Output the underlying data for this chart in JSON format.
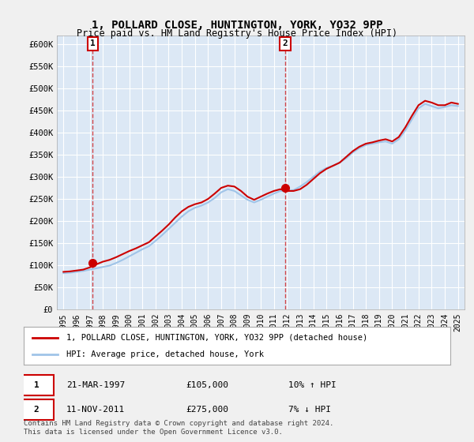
{
  "title1": "1, POLLARD CLOSE, HUNTINGTON, YORK, YO32 9PP",
  "title2": "Price paid vs. HM Land Registry's House Price Index (HPI)",
  "legend_line1": "1, POLLARD CLOSE, HUNTINGTON, YORK, YO32 9PP (detached house)",
  "legend_line2": "HPI: Average price, detached house, York",
  "sale1_label": "1",
  "sale1_date": "21-MAR-1997",
  "sale1_price": "£105,000",
  "sale1_hpi": "10% ↑ HPI",
  "sale1_year": 1997.22,
  "sale1_value": 105000,
  "sale2_label": "2",
  "sale2_date": "11-NOV-2011",
  "sale2_price": "£275,000",
  "sale2_hpi": "7% ↓ HPI",
  "sale2_year": 2011.87,
  "sale2_value": 275000,
  "footer": "Contains HM Land Registry data © Crown copyright and database right 2024.\nThis data is licensed under the Open Government Licence v3.0.",
  "hpi_color": "#a0c4e8",
  "price_color": "#cc0000",
  "marker_color": "#cc0000",
  "vline_color": "#cc0000",
  "bg_color": "#e8f0f8",
  "plot_bg": "#dce8f5",
  "ylim": [
    0,
    620000
  ],
  "yticks": [
    0,
    50000,
    100000,
    150000,
    200000,
    250000,
    300000,
    350000,
    400000,
    450000,
    500000,
    550000,
    600000
  ],
  "ytick_labels": [
    "£0",
    "£50K",
    "£100K",
    "£150K",
    "£200K",
    "£250K",
    "£300K",
    "£350K",
    "£400K",
    "£450K",
    "£500K",
    "£550K",
    "£600K"
  ],
  "xlim": [
    1994.5,
    2025.5
  ],
  "hpi_years": [
    1995,
    1995.5,
    1996,
    1996.5,
    1997,
    1997.5,
    1998,
    1998.5,
    1999,
    1999.5,
    2000,
    2000.5,
    2001,
    2001.5,
    2002,
    2002.5,
    2003,
    2003.5,
    2004,
    2004.5,
    2005,
    2005.5,
    2006,
    2006.5,
    2007,
    2007.5,
    2008,
    2008.5,
    2009,
    2009.5,
    2010,
    2010.5,
    2011,
    2011.5,
    2012,
    2012.5,
    2013,
    2013.5,
    2014,
    2014.5,
    2015,
    2015.5,
    2016,
    2016.5,
    2017,
    2017.5,
    2018,
    2018.5,
    2019,
    2019.5,
    2020,
    2020.5,
    2021,
    2021.5,
    2022,
    2022.5,
    2023,
    2023.5,
    2024,
    2024.5,
    2025
  ],
  "hpi_values": [
    82000,
    83000,
    85000,
    87000,
    90000,
    93000,
    96000,
    99000,
    105000,
    112000,
    120000,
    128000,
    136000,
    143000,
    155000,
    168000,
    182000,
    196000,
    210000,
    222000,
    230000,
    235000,
    242000,
    252000,
    265000,
    272000,
    268000,
    258000,
    248000,
    242000,
    248000,
    255000,
    262000,
    268000,
    268000,
    270000,
    278000,
    288000,
    300000,
    312000,
    320000,
    325000,
    332000,
    342000,
    355000,
    365000,
    372000,
    375000,
    378000,
    380000,
    375000,
    385000,
    405000,
    430000,
    455000,
    465000,
    460000,
    455000,
    458000,
    462000,
    460000
  ],
  "price_years": [
    1995,
    1995.5,
    1996,
    1996.5,
    1997,
    1997.5,
    1998,
    1998.5,
    1999,
    1999.5,
    2000,
    2000.5,
    2001,
    2001.5,
    2002,
    2002.5,
    2003,
    2003.5,
    2004,
    2004.5,
    2005,
    2005.5,
    2006,
    2006.5,
    2007,
    2007.5,
    2008,
    2008.5,
    2009,
    2009.5,
    2010,
    2010.5,
    2011,
    2011.5,
    2012,
    2012.5,
    2013,
    2013.5,
    2014,
    2014.5,
    2015,
    2015.5,
    2016,
    2016.5,
    2017,
    2017.5,
    2018,
    2018.5,
    2019,
    2019.5,
    2020,
    2020.5,
    2021,
    2021.5,
    2022,
    2022.5,
    2023,
    2023.5,
    2024,
    2024.5,
    2025
  ],
  "price_values": [
    85000,
    86000,
    88000,
    90000,
    95000,
    102000,
    108000,
    112000,
    118000,
    125000,
    132000,
    138000,
    145000,
    152000,
    165000,
    178000,
    192000,
    208000,
    222000,
    232000,
    238000,
    242000,
    250000,
    262000,
    275000,
    280000,
    278000,
    268000,
    255000,
    248000,
    255000,
    262000,
    268000,
    272000,
    268000,
    268000,
    272000,
    282000,
    295000,
    308000,
    318000,
    325000,
    332000,
    345000,
    358000,
    368000,
    375000,
    378000,
    382000,
    385000,
    380000,
    390000,
    412000,
    438000,
    462000,
    472000,
    468000,
    462000,
    462000,
    468000,
    465000
  ]
}
